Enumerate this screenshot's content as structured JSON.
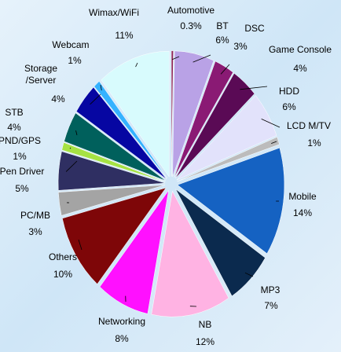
{
  "chart_data": {
    "type": "pie",
    "categories": [
      "Automotive",
      "BT",
      "DSC",
      "Game Console",
      "HDD",
      "LCD M/TV",
      "Mobile",
      "MP3",
      "NB",
      "Networking",
      "Others",
      "PC/MB",
      "Pen Driver",
      "PND/GPS",
      "STB",
      "Storage\n/Server",
      "Webcam",
      "Wimax/WiFi"
    ],
    "values": [
      0.3,
      6,
      3,
      4,
      6,
      1,
      14,
      7,
      12,
      8,
      10,
      3,
      5,
      1,
      4,
      4,
      1,
      11
    ],
    "value_labels": [
      "0.3%",
      "6%",
      "3%",
      "4%",
      "6%",
      "1%",
      "14%",
      "7%",
      "12%",
      "8%",
      "10%",
      "3%",
      "5%",
      "1%",
      "4%",
      "4%",
      "1%",
      "11%"
    ],
    "colors": [
      "#8e2456",
      "#b9a2e6",
      "#8a1a74",
      "#5a0a55",
      "#e2e2fb",
      "#bcbcbc",
      "#1562c2",
      "#0b2a4e",
      "#ffb3e3",
      "#ff10ff",
      "#7e0608",
      "#a4a4a4",
      "#2f2f62",
      "#a6e244",
      "#00605c",
      "#0606a2",
      "#35b2ff",
      "#d8fbfd"
    ]
  }
}
